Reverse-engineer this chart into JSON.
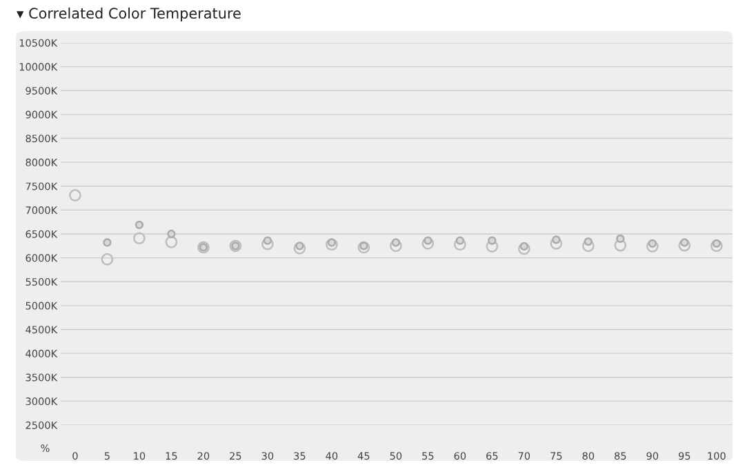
{
  "chart_data": {
    "type": "scatter",
    "title": "▾ Correlated Color Temperature",
    "xlabel": "%",
    "categories": [
      "0",
      "5",
      "10",
      "15",
      "20",
      "25",
      "30",
      "35",
      "40",
      "45",
      "50",
      "55",
      "60",
      "65",
      "70",
      "75",
      "80",
      "85",
      "90",
      "95",
      "100"
    ],
    "series": [
      {
        "color": "#bdbdbd",
        "values": [
          7310,
          5970,
          6410,
          6330,
          6220,
          6250,
          6290,
          6200,
          6280,
          6220,
          6250,
          6300,
          6280,
          6240,
          6190,
          6300,
          6250,
          6260,
          6240,
          6260,
          6250
        ]
      },
      {
        "color": "#aaaaaa",
        "values": [
          null,
          6320,
          6690,
          6500,
          6220,
          6250,
          6360,
          6250,
          6320,
          6250,
          6320,
          6360,
          6360,
          6360,
          6240,
          6380,
          6340,
          6400,
          6300,
          6320,
          6300
        ]
      }
    ],
    "ylim": [
      2500,
      10500
    ],
    "yticks": [
      {
        "value": 2500,
        "label": "2500K"
      },
      {
        "value": 3000,
        "label": "3000K"
      },
      {
        "value": 3500,
        "label": "3500K"
      },
      {
        "value": 4000,
        "label": "4000K"
      },
      {
        "value": 4500,
        "label": "4500K"
      },
      {
        "value": 5000,
        "label": "5000K"
      },
      {
        "value": 5500,
        "label": "5500K"
      },
      {
        "value": 6000,
        "label": "6000K"
      },
      {
        "value": 6500,
        "label": "6500K"
      },
      {
        "value": 7000,
        "label": "7000K"
      },
      {
        "value": 7500,
        "label": "7500K"
      },
      {
        "value": 8000,
        "label": "8000K"
      },
      {
        "value": 8500,
        "label": "8500K"
      },
      {
        "value": 9000,
        "label": "9000K"
      },
      {
        "value": 9500,
        "label": "9500K"
      },
      {
        "value": 10000,
        "label": "10000K"
      },
      {
        "value": 10500,
        "label": "10500K"
      }
    ],
    "grid": "y",
    "marker": "circle"
  }
}
